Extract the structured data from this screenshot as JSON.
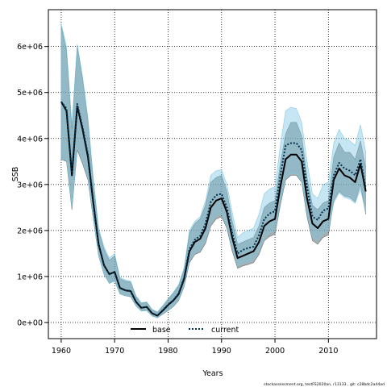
{
  "chart_data": {
    "type": "line",
    "title": "",
    "xlabel": "Years",
    "ylabel": "SSB",
    "xlim": [
      1957.6,
      2019.0
    ],
    "ylim": [
      -350000,
      6800000
    ],
    "x_ticks": [
      1960,
      1970,
      1980,
      1990,
      2000,
      2010
    ],
    "x_tick_labels": [
      "1960",
      "1970",
      "1980",
      "1990",
      "2000",
      "2010"
    ],
    "y_ticks": [
      0,
      1000000,
      2000000,
      3000000,
      4000000,
      5000000,
      6000000
    ],
    "y_tick_labels": [
      "0e+00",
      "1e+06",
      "2e+06",
      "3e+06",
      "4e+06",
      "5e+06",
      "6e+06"
    ],
    "grid": true,
    "legend_placement": "bottom-center",
    "x": [
      1960,
      1961,
      1962,
      1963,
      1964,
      1965,
      1966,
      1967,
      1968,
      1969,
      1970,
      1971,
      1972,
      1973,
      1974,
      1975,
      1976,
      1977,
      1978,
      1979,
      1980,
      1981,
      1982,
      1983,
      1984,
      1985,
      1986,
      1987,
      1988,
      1989,
      1990,
      1991,
      1992,
      1993,
      1994,
      1995,
      1996,
      1997,
      1998,
      1999,
      2000,
      2001,
      2002,
      2003,
      2004,
      2005,
      2006,
      2007,
      2008,
      2009,
      2010,
      2011,
      2012,
      2013,
      2014,
      2015,
      2016,
      2017
    ],
    "series": [
      {
        "name": "base",
        "color": "#000000",
        "line_style": "solid",
        "band_color": "#5f6b6e",
        "values": [
          4800000,
          4600000,
          3200000,
          4700000,
          4200000,
          3600000,
          2600000,
          1700000,
          1250000,
          1050000,
          1100000,
          750000,
          700000,
          680000,
          450000,
          320000,
          340000,
          200000,
          150000,
          260000,
          380000,
          480000,
          620000,
          950000,
          1550000,
          1750000,
          1820000,
          2050000,
          2500000,
          2650000,
          2700000,
          2400000,
          1850000,
          1400000,
          1450000,
          1500000,
          1550000,
          1750000,
          2100000,
          2200000,
          2250000,
          2950000,
          3550000,
          3650000,
          3650000,
          3500000,
          2700000,
          2150000,
          2050000,
          2200000,
          2250000,
          3100000,
          3350000,
          3200000,
          3150000,
          3050000,
          3450000,
          2850000
        ],
        "lower": [
          3550000,
          3500000,
          2450000,
          3750000,
          3450000,
          3100000,
          2250000,
          1450000,
          1050000,
          850000,
          900000,
          620000,
          580000,
          560000,
          360000,
          250000,
          260000,
          140000,
          100000,
          180000,
          260000,
          350000,
          480000,
          780000,
          1300000,
          1480000,
          1530000,
          1720000,
          2100000,
          2250000,
          2300000,
          2050000,
          1550000,
          1180000,
          1230000,
          1260000,
          1300000,
          1480000,
          1780000,
          1870000,
          1920000,
          2550000,
          3100000,
          3200000,
          3200000,
          3050000,
          2300000,
          1780000,
          1700000,
          1850000,
          1900000,
          2650000,
          2850000,
          2750000,
          2720000,
          2620000,
          3000000,
          2350000
        ],
        "upper": [
          6450000,
          5900000,
          4200000,
          6000000,
          5300000,
          4400000,
          3100000,
          2000000,
          1600000,
          1350000,
          1450000,
          950000,
          900000,
          880000,
          560000,
          420000,
          440000,
          280000,
          220000,
          350000,
          500000,
          640000,
          800000,
          1150000,
          1950000,
          2150000,
          2250000,
          2550000,
          3050000,
          3150000,
          3200000,
          2850000,
          2200000,
          1700000,
          1750000,
          1800000,
          1850000,
          2100000,
          2500000,
          2600000,
          2650000,
          3450000,
          4100000,
          4350000,
          4350000,
          4050000,
          3150000,
          2550000,
          2450000,
          2600000,
          2650000,
          3600000,
          3900000,
          3700000,
          3700000,
          3550000,
          3950000,
          3350000
        ]
      },
      {
        "name": "current",
        "color": "#00324f",
        "line_style": "dotted",
        "band_color": "#7ec8e3",
        "values": [
          4800000,
          4650000,
          3250000,
          4750000,
          4250000,
          3650000,
          2650000,
          1700000,
          1250000,
          1050000,
          1100000,
          750000,
          700000,
          690000,
          450000,
          320000,
          340000,
          200000,
          150000,
          270000,
          390000,
          490000,
          640000,
          980000,
          1600000,
          1800000,
          1880000,
          2150000,
          2620000,
          2770000,
          2800000,
          2500000,
          1950000,
          1500000,
          1580000,
          1620000,
          1650000,
          1900000,
          2250000,
          2370000,
          2420000,
          3200000,
          3850000,
          3900000,
          3900000,
          3750000,
          2950000,
          2300000,
          2230000,
          2430000,
          2480000,
          3200000,
          3470000,
          3350000,
          3300000,
          3200000,
          3550000,
          2920000
        ],
        "lower": [
          3550000,
          3550000,
          2500000,
          3800000,
          3500000,
          3150000,
          2300000,
          1450000,
          1050000,
          850000,
          900000,
          620000,
          580000,
          570000,
          360000,
          250000,
          260000,
          140000,
          100000,
          190000,
          270000,
          360000,
          500000,
          800000,
          1350000,
          1520000,
          1570000,
          1790000,
          2180000,
          2320000,
          2350000,
          2100000,
          1600000,
          1230000,
          1290000,
          1320000,
          1350000,
          1560000,
          1850000,
          1950000,
          1990000,
          2620000,
          3150000,
          3230000,
          3230000,
          3080000,
          2400000,
          1850000,
          1790000,
          1950000,
          1990000,
          2600000,
          2820000,
          2720000,
          2680000,
          2590000,
          2900000,
          2380000
        ],
        "upper": [
          6500000,
          6000000,
          4300000,
          6050000,
          5350000,
          4450000,
          3150000,
          2050000,
          1650000,
          1400000,
          1500000,
          980000,
          930000,
          900000,
          580000,
          430000,
          450000,
          290000,
          230000,
          370000,
          520000,
          660000,
          830000,
          1200000,
          2000000,
          2200000,
          2300000,
          2650000,
          3200000,
          3300000,
          3320000,
          3000000,
          2400000,
          1850000,
          1950000,
          2000000,
          2050000,
          2350000,
          2800000,
          2900000,
          2950000,
          3850000,
          4600000,
          4680000,
          4650000,
          4350000,
          3500000,
          2800000,
          2700000,
          3000000,
          3050000,
          3900000,
          4200000,
          4000000,
          3950000,
          3850000,
          4300000,
          3700000
        ]
      }
    ]
  },
  "footer": {
    "text": "stockassessment.org, testFS2020an, r13133 , git: c28bdc2a44ad"
  }
}
